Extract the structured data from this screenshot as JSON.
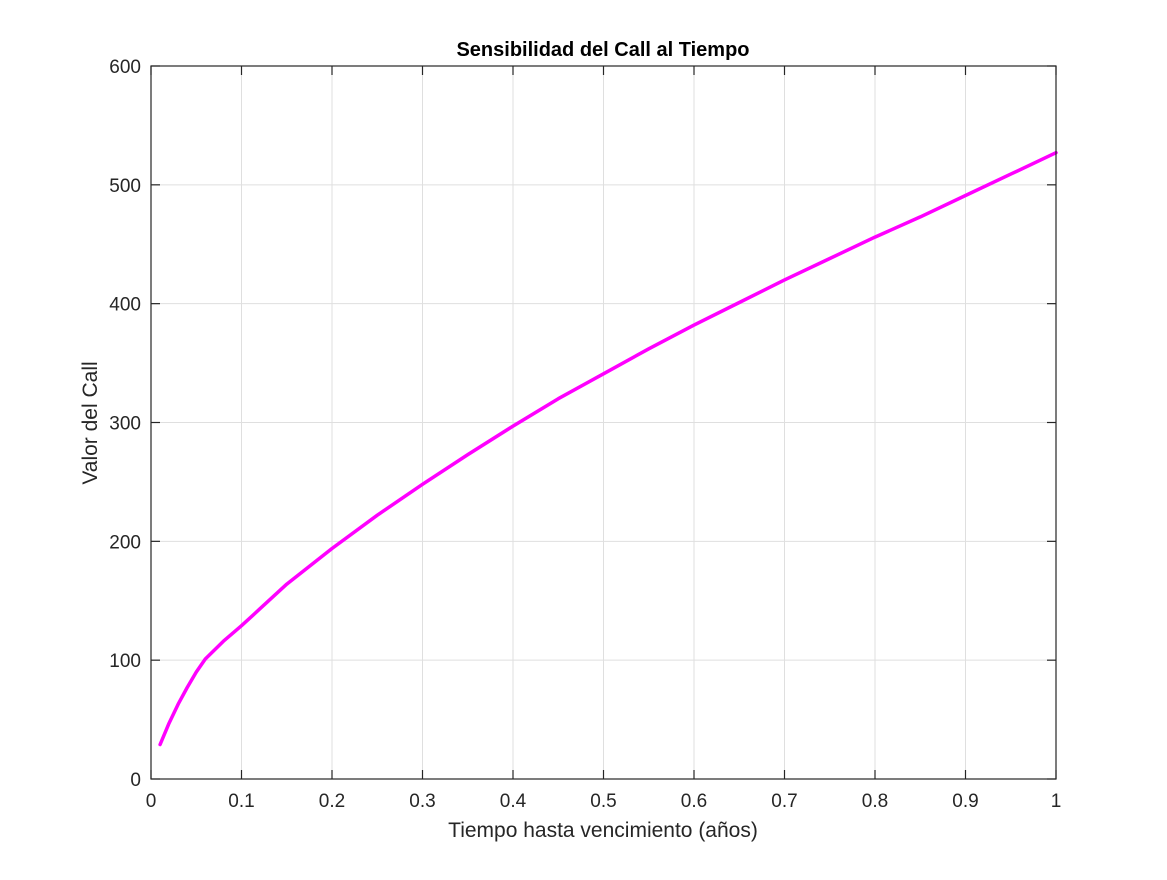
{
  "chart_data": {
    "type": "line",
    "title": "Sensibilidad del Call al Tiempo",
    "xlabel": "Tiempo hasta vencimiento (años)",
    "ylabel": "Valor del Call",
    "xlim": [
      0,
      1
    ],
    "ylim": [
      0,
      600
    ],
    "xticks": [
      0,
      0.1,
      0.2,
      0.3,
      0.4,
      0.5,
      0.6,
      0.7,
      0.8,
      0.9,
      1
    ],
    "xtick_labels": [
      "0",
      "0.1",
      "0.2",
      "0.3",
      "0.4",
      "0.5",
      "0.6",
      "0.7",
      "0.8",
      "0.9",
      "1"
    ],
    "yticks": [
      0,
      100,
      200,
      300,
      400,
      500,
      600
    ],
    "ytick_labels": [
      "0",
      "100",
      "200",
      "300",
      "400",
      "500",
      "600"
    ],
    "grid": true,
    "series": [
      {
        "color": "#ff00ff",
        "x": [
          0.01,
          0.02,
          0.03,
          0.04,
          0.05,
          0.06,
          0.08,
          0.1,
          0.12,
          0.15,
          0.2,
          0.25,
          0.3,
          0.35,
          0.4,
          0.45,
          0.5,
          0.55,
          0.6,
          0.65,
          0.7,
          0.75,
          0.8,
          0.85,
          0.9,
          0.95,
          1.0
        ],
        "y": [
          29,
          47,
          63,
          77,
          90,
          101,
          116,
          129,
          143,
          164,
          194,
          222,
          248,
          273,
          297,
          320,
          341,
          362,
          382,
          401,
          420,
          438,
          456,
          473,
          491,
          509,
          527
        ]
      }
    ]
  }
}
